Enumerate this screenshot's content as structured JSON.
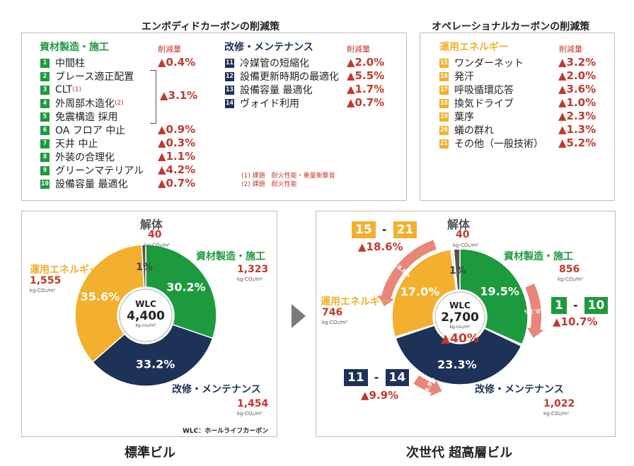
{
  "colors": {
    "green": "#1e9a3e",
    "navy": "#1d3257",
    "yellow": "#f2b02e",
    "gray": "#d9d9d9",
    "red": "#c0392b",
    "salmon": "#e8867a",
    "dark": "#555555"
  },
  "embodied": {
    "title": "エンボディドカーボンの削減策",
    "group1": {
      "head": "資材製造・施工",
      "reduction_label": "削減量"
    },
    "group2": {
      "head": "改修・メンテナンス",
      "reduction_label": "削減量"
    },
    "items1": [
      {
        "n": "1",
        "label": "中間柱",
        "sup": "",
        "pct": "▲0.4%"
      },
      {
        "n": "2",
        "label": "ブレース適正配置",
        "sup": "",
        "pct": ""
      },
      {
        "n": "3",
        "label": "CLT",
        "sup": "(1)",
        "pct": ""
      },
      {
        "n": "4",
        "label": "外周部木造化",
        "sup": "(2)",
        "pct": ""
      },
      {
        "n": "5",
        "label": "免震構造 採用",
        "sup": "",
        "pct": ""
      },
      {
        "n": "6",
        "label": "OA フロア 中止",
        "sup": "",
        "pct": "▲0.9%"
      },
      {
        "n": "7",
        "label": "天井 中止",
        "sup": "",
        "pct": "▲0.3%"
      },
      {
        "n": "8",
        "label": "外装の合理化",
        "sup": "",
        "pct": "▲1.1%"
      },
      {
        "n": "9",
        "label": "グリーンマテリアル",
        "sup": "",
        "pct": "▲4.2%"
      },
      {
        "n": "10",
        "label": "設備容量 最適化",
        "sup": "",
        "pct": "▲0.7%"
      }
    ],
    "bracket_pct": "▲3.1%",
    "items2": [
      {
        "n": "11",
        "label": "冷媒管の短縮化",
        "pct": "▲2.0%"
      },
      {
        "n": "12",
        "label": "設備更新時期の最適化",
        "pct": "▲5.5%"
      },
      {
        "n": "13",
        "label": "設備容量 最適化",
        "pct": "▲1.7%"
      },
      {
        "n": "14",
        "label": "ヴォイド利用",
        "pct": "▲0.7%"
      }
    ],
    "notes": [
      "(1) 課題　耐火性能・重量衝撃音",
      "(2) 課題　耐火性能"
    ]
  },
  "operational": {
    "title": "オペレーショナルカーボンの削減策",
    "head": "運用エネルギー",
    "reduction_label": "削減量",
    "items": [
      {
        "n": "15",
        "label": "ワンダーネット",
        "pct": "▲3.2%"
      },
      {
        "n": "16",
        "label": "発汗",
        "pct": "▲2.0%"
      },
      {
        "n": "17",
        "label": "呼吸循環応答",
        "pct": "▲3.6%"
      },
      {
        "n": "18",
        "label": "換気ドライブ",
        "pct": "▲1.0%"
      },
      {
        "n": "19",
        "label": "葉序",
        "pct": "▲2.3%"
      },
      {
        "n": "20",
        "label": "蟻の群れ",
        "pct": "▲1.3%"
      },
      {
        "n": "21",
        "label": "その他（一般技術）",
        "pct": "▲5.2%"
      }
    ]
  },
  "chart_data": [
    {
      "type": "pie",
      "title": "標準ビル",
      "center": {
        "label": "WLC",
        "value": "4,400",
        "unit": "kg-co₂/m²"
      },
      "unit": "kg-CO₂/m²",
      "slices": [
        {
          "name": "資材製造・施工",
          "value": 1323,
          "value_label": "1,323",
          "percent": "30.2%",
          "color": "#1e9a3e"
        },
        {
          "name": "改修・メンテナンス",
          "value": 1454,
          "value_label": "1,454",
          "percent": "33.2%",
          "color": "#1d3257"
        },
        {
          "name": "運用エネルギー",
          "value": 1555,
          "value_label": "1,555",
          "percent": "35.6%",
          "color": "#f2b02e"
        },
        {
          "name": "解体",
          "value": 40,
          "value_label": "40",
          "percent": "1%",
          "color": "#555555"
        }
      ],
      "footnote": "WLC：ホールライフカーボン"
    },
    {
      "type": "pie",
      "title": "次世代 超高層ビル",
      "center": {
        "label": "WLC",
        "value": "2,700",
        "unit": "kg-co₂/m²",
        "reduction": "▲40%"
      },
      "unit": "kg-CO₂/m²",
      "slices": [
        {
          "name": "資材製造・施工",
          "value": 856,
          "value_label": "856",
          "percent": "19.5%",
          "color": "#1e9a3e"
        },
        {
          "name": "資材製造・施工 削減",
          "value": 10.7,
          "percent": "▲10.7%",
          "color": "#ebebeb"
        },
        {
          "name": "改修・メンテナンス",
          "value": 1022,
          "value_label": "1,022",
          "percent": "23.3%",
          "color": "#1d3257"
        },
        {
          "name": "改修・メンテナンス 削減",
          "value": 9.9,
          "percent": "▲9.9%",
          "color": "#ebebeb"
        },
        {
          "name": "運用エネルギー",
          "value": 746,
          "value_label": "746",
          "percent": "17.0%",
          "color": "#f2b02e"
        },
        {
          "name": "運用エネルギー 削減",
          "value": 18.6,
          "percent": "▲18.6%",
          "color": "#ebebeb"
        },
        {
          "name": "解体",
          "value": 40,
          "value_label": "40",
          "percent": "1%",
          "color": "#555555"
        }
      ],
      "arrows": [
        {
          "range_from": "1",
          "range_to": "10",
          "text": "▲10.7%"
        },
        {
          "range_from": "11",
          "range_to": "14",
          "text": "▲9.9%"
        },
        {
          "range_from": "15",
          "range_to": "21",
          "text": "▲18.6%"
        }
      ]
    }
  ]
}
